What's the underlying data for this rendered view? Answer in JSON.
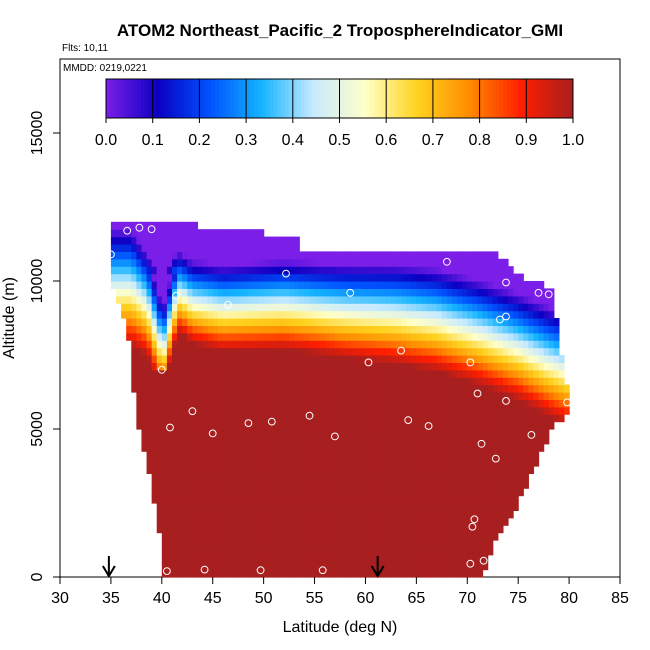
{
  "chart_data": {
    "type": "heatmap",
    "title": "ATOM2 Northeast_Pacific_2 TroposphereIndicator_GMI",
    "subtitle_flights": "Flts: 10,11",
    "subtitle_dates": "MMDD: 0219,0221",
    "xlabel": "Latitude (deg N)",
    "ylabel": "Altitude (m)",
    "xlim": [
      30,
      85
    ],
    "ylim": [
      0,
      17500
    ],
    "x_ticks": [
      "30",
      "35",
      "40",
      "45",
      "50",
      "55",
      "60",
      "65",
      "70",
      "75",
      "80",
      "85"
    ],
    "y_ticks": [
      "0",
      "5000",
      "10000",
      "15000"
    ],
    "colorbar": {
      "range": [
        0,
        1
      ],
      "ticks": [
        "0.0",
        "0.1",
        "0.2",
        "0.3",
        "0.4",
        "0.5",
        "0.6",
        "0.7",
        "0.8",
        "0.9",
        "1.0"
      ],
      "colors": [
        "#7b1fe8",
        "#0b00c2",
        "#0052ff",
        "#14b4ff",
        "#c8eaff",
        "#ffffc8",
        "#ffd21e",
        "#ff8c00",
        "#ff1e00",
        "#a81f1f"
      ]
    },
    "arrows_lat": [
      34.8,
      61.2
    ],
    "sample_points": [
      {
        "lat": 36.6,
        "alt": 11700
      },
      {
        "lat": 37.8,
        "alt": 11800
      },
      {
        "lat": 39.0,
        "alt": 11750
      },
      {
        "lat": 35.0,
        "alt": 10900
      },
      {
        "lat": 41.4,
        "alt": 9500
      },
      {
        "lat": 46.5,
        "alt": 9200
      },
      {
        "lat": 52.2,
        "alt": 10250
      },
      {
        "lat": 58.5,
        "alt": 9600
      },
      {
        "lat": 68.0,
        "alt": 10650
      },
      {
        "lat": 73.8,
        "alt": 9950
      },
      {
        "lat": 77.0,
        "alt": 9600
      },
      {
        "lat": 78.0,
        "alt": 9550
      },
      {
        "lat": 73.2,
        "alt": 8700
      },
      {
        "lat": 73.8,
        "alt": 8800
      },
      {
        "lat": 63.5,
        "alt": 7650
      },
      {
        "lat": 60.3,
        "alt": 7250
      },
      {
        "lat": 70.3,
        "alt": 7250
      },
      {
        "lat": 40.0,
        "alt": 7000
      },
      {
        "lat": 71.0,
        "alt": 6200
      },
      {
        "lat": 73.8,
        "alt": 5950
      },
      {
        "lat": 79.8,
        "alt": 5900
      },
      {
        "lat": 43.0,
        "alt": 5600
      },
      {
        "lat": 54.5,
        "alt": 5450
      },
      {
        "lat": 64.2,
        "alt": 5300
      },
      {
        "lat": 66.2,
        "alt": 5100
      },
      {
        "lat": 48.5,
        "alt": 5200
      },
      {
        "lat": 50.8,
        "alt": 5250
      },
      {
        "lat": 40.8,
        "alt": 5050
      },
      {
        "lat": 45.0,
        "alt": 4850
      },
      {
        "lat": 57.0,
        "alt": 4750
      },
      {
        "lat": 76.3,
        "alt": 4800
      },
      {
        "lat": 71.4,
        "alt": 4500
      },
      {
        "lat": 72.8,
        "alt": 4000
      },
      {
        "lat": 70.7,
        "alt": 1950
      },
      {
        "lat": 70.5,
        "alt": 1700
      },
      {
        "lat": 70.3,
        "alt": 450
      },
      {
        "lat": 71.6,
        "alt": 550
      },
      {
        "lat": 40.5,
        "alt": 200
      },
      {
        "lat": 44.2,
        "alt": 250
      },
      {
        "lat": 49.7,
        "alt": 230
      },
      {
        "lat": 55.8,
        "alt": 230
      }
    ]
  }
}
